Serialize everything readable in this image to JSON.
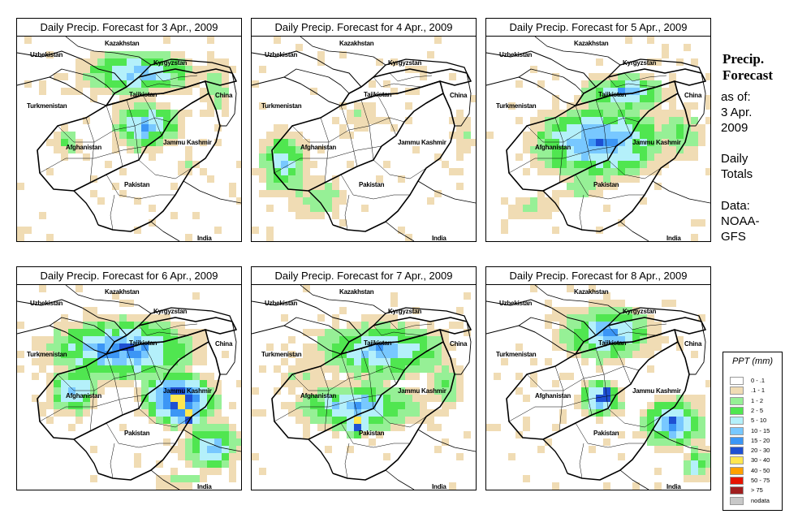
{
  "panels": [
    {
      "id": "p1",
      "title": "Daily Precip. Forecast for  3 Apr., 2009"
    },
    {
      "id": "p2",
      "title": "Daily Precip. Forecast for  4 Apr., 2009"
    },
    {
      "id": "p3",
      "title": "Daily Precip. Forecast for  5 Apr., 2009"
    },
    {
      "id": "p4",
      "title": "Daily Precip. Forecast for  6 Apr., 2009"
    },
    {
      "id": "p5",
      "title": "Daily Precip. Forecast for  7 Apr., 2009"
    },
    {
      "id": "p6",
      "title": "Daily Precip. Forecast for  8 Apr., 2009"
    }
  ],
  "map_labels": {
    "kazakhstan": "Kazakhstan",
    "uzbekistan": "Uzbekistan",
    "kyrgyzstan": "Kyrgyzstan",
    "tajikistan": "Tajikistan",
    "turkmenistan": "Turkmenistan",
    "china": "China",
    "afghanistan": "Afghanistan",
    "jammu_kashmir": "Jammu Kashmir",
    "pakistan": "Pakistan",
    "india": "India"
  },
  "side_info": {
    "title_line1": "Precip.",
    "title_line2": "Forecast",
    "asof_line1": "as of:",
    "asof_line2": "3 Apr.",
    "asof_line3": "2009",
    "totals_line1": "Daily",
    "totals_line2": "Totals",
    "data_line1": "Data:",
    "data_line2": "NOAA-",
    "data_line3": "GFS"
  },
  "legend": {
    "title": "PPT (mm)",
    "items": [
      {
        "label": "0 - .1",
        "color": "#ffffff"
      },
      {
        "label": ".1 - 1",
        "color": "#f0dcb4"
      },
      {
        "label": "1 - 2",
        "color": "#96f096"
      },
      {
        "label": "2 - 5",
        "color": "#50e650"
      },
      {
        "label": "5 - 10",
        "color": "#b4f0fa"
      },
      {
        "label": "10 - 15",
        "color": "#78c8ff"
      },
      {
        "label": "15 - 20",
        "color": "#3c96f5"
      },
      {
        "label": "20 - 30",
        "color": "#1e50d2"
      },
      {
        "label": "30 - 40",
        "color": "#ffe650"
      },
      {
        "label": "40 - 50",
        "color": "#ffa000"
      },
      {
        "label": "50 - 75",
        "color": "#e61400"
      },
      {
        "label": "> 75",
        "color": "#a01e1e"
      },
      {
        "label": "nodata",
        "color": "#c8c8c8"
      }
    ]
  }
}
